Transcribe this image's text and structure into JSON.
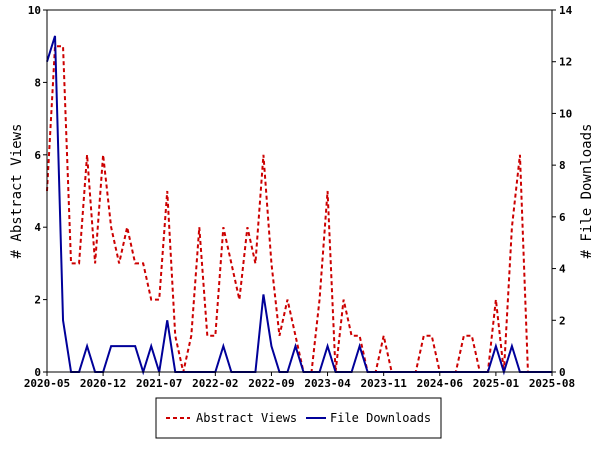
{
  "chart_data": {
    "type": "line",
    "x_start": "2020-05",
    "x_end": "2025-08",
    "x_tick_labels": [
      "2020-05",
      "2020-12",
      "2021-07",
      "2022-02",
      "2022-09",
      "2023-04",
      "2023-11",
      "2024-06",
      "2025-01",
      "2025-08"
    ],
    "y_left": {
      "label": "# Abstract Views",
      "range": [
        0,
        10
      ],
      "ticks": [
        "0",
        "2",
        "4",
        "6",
        "8",
        "10"
      ]
    },
    "y_right": {
      "label": "# File Downloads",
      "range": [
        0,
        14
      ],
      "ticks": [
        "0",
        "2",
        "4",
        "6",
        "8",
        "10",
        "12",
        "14"
      ]
    },
    "grid": false,
    "legend_position": "bottom",
    "series": [
      {
        "name": "Abstract Views",
        "axis": "left",
        "color": "#cc0000",
        "style": "dashed",
        "points": [
          [
            "2020-05",
            5
          ],
          [
            "2020-06",
            9
          ],
          [
            "2020-07",
            9
          ],
          [
            "2020-08",
            3
          ],
          [
            "2020-09",
            3
          ],
          [
            "2020-10",
            6
          ],
          [
            "2020-11",
            3
          ],
          [
            "2020-12",
            6
          ],
          [
            "2021-01",
            4
          ],
          [
            "2021-02",
            3
          ],
          [
            "2021-03",
            4
          ],
          [
            "2021-04",
            3
          ],
          [
            "2021-05",
            3
          ],
          [
            "2021-06",
            2
          ],
          [
            "2021-07",
            2
          ],
          [
            "2021-08",
            5
          ],
          [
            "2021-09",
            1
          ],
          [
            "2021-10",
            0
          ],
          [
            "2021-11",
            1
          ],
          [
            "2021-12",
            4
          ],
          [
            "2022-01",
            1
          ],
          [
            "2022-02",
            1
          ],
          [
            "2022-03",
            4
          ],
          [
            "2022-04",
            3
          ],
          [
            "2022-05",
            2
          ],
          [
            "2022-06",
            4
          ],
          [
            "2022-07",
            3
          ],
          [
            "2022-08",
            6
          ],
          [
            "2022-09",
            3
          ],
          [
            "2022-10",
            1
          ],
          [
            "2022-11",
            2
          ],
          [
            "2022-12",
            1
          ],
          [
            "2023-01",
            0
          ],
          [
            "2023-02",
            0
          ],
          [
            "2023-03",
            2
          ],
          [
            "2023-04",
            5
          ],
          [
            "2023-05",
            0
          ],
          [
            "2023-06",
            2
          ],
          [
            "2023-07",
            1
          ],
          [
            "2023-08",
            1
          ],
          [
            "2023-09",
            0
          ],
          [
            "2023-10",
            0
          ],
          [
            "2023-11",
            1
          ],
          [
            "2023-12",
            0
          ],
          [
            "2024-01",
            0
          ],
          [
            "2024-02",
            0
          ],
          [
            "2024-03",
            0
          ],
          [
            "2024-04",
            1
          ],
          [
            "2024-05",
            1
          ],
          [
            "2024-06",
            0
          ],
          [
            "2024-07",
            0
          ],
          [
            "2024-08",
            0
          ],
          [
            "2024-09",
            1
          ],
          [
            "2024-10",
            1
          ],
          [
            "2024-11",
            0
          ],
          [
            "2024-12",
            0
          ],
          [
            "2025-01",
            2
          ],
          [
            "2025-02",
            0
          ],
          [
            "2025-03",
            4
          ],
          [
            "2025-04",
            6
          ],
          [
            "2025-05",
            0
          ],
          [
            "2025-06",
            0
          ],
          [
            "2025-07",
            0
          ],
          [
            "2025-08",
            0
          ]
        ]
      },
      {
        "name": "File Downloads",
        "axis": "right",
        "color": "#000099",
        "style": "solid",
        "points": [
          [
            "2020-05",
            12
          ],
          [
            "2020-06",
            13
          ],
          [
            "2020-07",
            2
          ],
          [
            "2020-08",
            0
          ],
          [
            "2020-09",
            0
          ],
          [
            "2020-10",
            1
          ],
          [
            "2020-11",
            0
          ],
          [
            "2020-12",
            0
          ],
          [
            "2021-01",
            1
          ],
          [
            "2021-02",
            1
          ],
          [
            "2021-03",
            1
          ],
          [
            "2021-04",
            1
          ],
          [
            "2021-05",
            0
          ],
          [
            "2021-06",
            1
          ],
          [
            "2021-07",
            0
          ],
          [
            "2021-08",
            2
          ],
          [
            "2021-09",
            0
          ],
          [
            "2021-10",
            0
          ],
          [
            "2021-11",
            0
          ],
          [
            "2021-12",
            0
          ],
          [
            "2022-01",
            0
          ],
          [
            "2022-02",
            0
          ],
          [
            "2022-03",
            1
          ],
          [
            "2022-04",
            0
          ],
          [
            "2022-05",
            0
          ],
          [
            "2022-06",
            0
          ],
          [
            "2022-07",
            0
          ],
          [
            "2022-08",
            3
          ],
          [
            "2022-09",
            1
          ],
          [
            "2022-10",
            0
          ],
          [
            "2022-11",
            0
          ],
          [
            "2022-12",
            1
          ],
          [
            "2023-01",
            0
          ],
          [
            "2023-02",
            0
          ],
          [
            "2023-03",
            0
          ],
          [
            "2023-04",
            1
          ],
          [
            "2023-05",
            0
          ],
          [
            "2023-06",
            0
          ],
          [
            "2023-07",
            0
          ],
          [
            "2023-08",
            1
          ],
          [
            "2023-09",
            0
          ],
          [
            "2023-10",
            0
          ],
          [
            "2023-11",
            0
          ],
          [
            "2023-12",
            0
          ],
          [
            "2024-01",
            0
          ],
          [
            "2024-02",
            0
          ],
          [
            "2024-03",
            0
          ],
          [
            "2024-04",
            0
          ],
          [
            "2024-05",
            0
          ],
          [
            "2024-06",
            0
          ],
          [
            "2024-07",
            0
          ],
          [
            "2024-08",
            0
          ],
          [
            "2024-09",
            0
          ],
          [
            "2024-10",
            0
          ],
          [
            "2024-11",
            0
          ],
          [
            "2024-12",
            0
          ],
          [
            "2025-01",
            1
          ],
          [
            "2025-02",
            0
          ],
          [
            "2025-03",
            1
          ],
          [
            "2025-04",
            0
          ],
          [
            "2025-05",
            0
          ],
          [
            "2025-06",
            0
          ],
          [
            "2025-07",
            0
          ],
          [
            "2025-08",
            0
          ]
        ]
      }
    ]
  }
}
